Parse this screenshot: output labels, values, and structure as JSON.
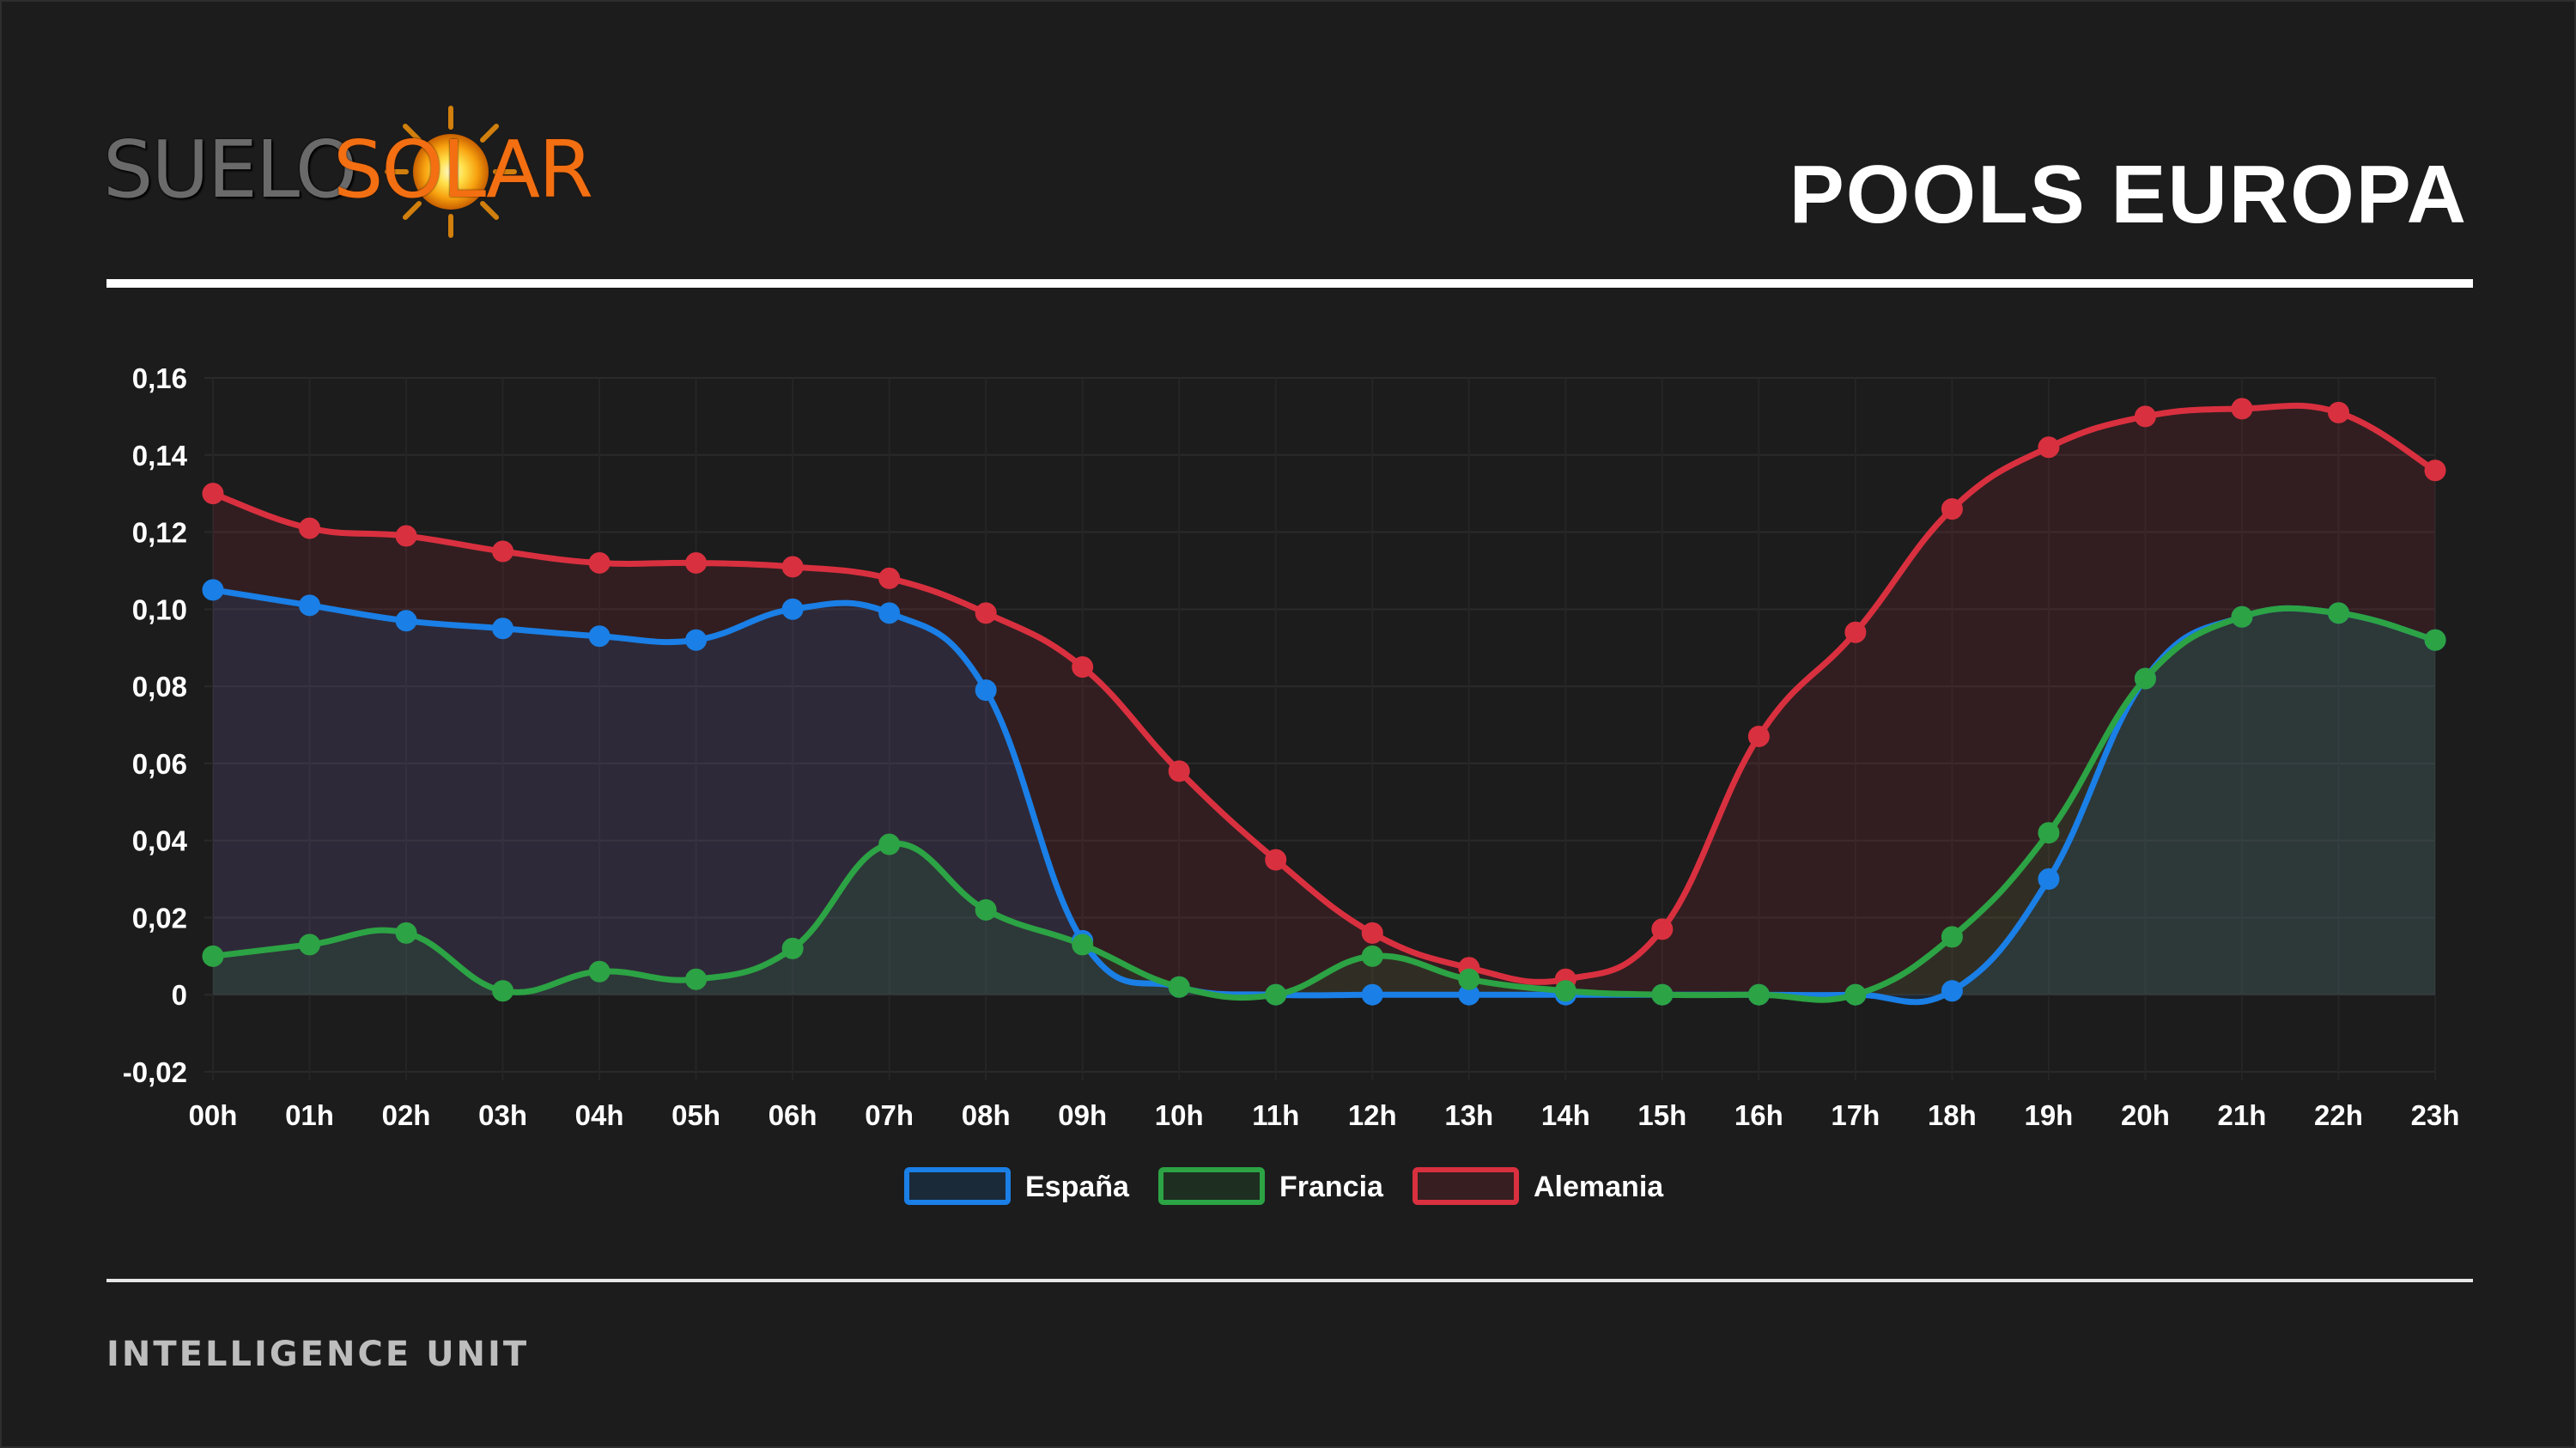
{
  "header": {
    "logo_text_left": "SUELO",
    "logo_text_right": "SOLAR",
    "title": "POOLS EUROPA"
  },
  "footer": {
    "label": "INTELLIGENCE UNIT"
  },
  "colors": {
    "background": "#1c1c1c",
    "espana": "#1a7fe6",
    "francia": "#2ca344",
    "alemania": "#d9303f",
    "logo_orange": "#f36f12",
    "logo_gray": "#6a6a6a"
  },
  "chart_data": {
    "type": "line",
    "title": "",
    "xlabel": "",
    "ylabel": "",
    "categories": [
      "00h",
      "01h",
      "02h",
      "03h",
      "04h",
      "05h",
      "06h",
      "07h",
      "08h",
      "09h",
      "10h",
      "11h",
      "12h",
      "13h",
      "14h",
      "15h",
      "16h",
      "17h",
      "18h",
      "19h",
      "20h",
      "21h",
      "22h",
      "23h"
    ],
    "ylim": [
      -0.02,
      0.16
    ],
    "yticks": [
      -0.02,
      0,
      0.02,
      0.04,
      0.06,
      0.08,
      0.1,
      0.12,
      0.14,
      0.16
    ],
    "ytick_labels": [
      "-0,02",
      "0",
      "0,02",
      "0,04",
      "0,06",
      "0,08",
      "0,10",
      "0,12",
      "0,14",
      "0,16"
    ],
    "grid": true,
    "filled": true,
    "legend_position": "bottom",
    "series": [
      {
        "name": "España",
        "color": "#1a7fe6",
        "values": [
          0.105,
          0.101,
          0.097,
          0.095,
          0.093,
          0.092,
          0.1,
          0.099,
          0.079,
          0.014,
          0.002,
          0.0,
          0.0,
          0.0,
          0.0,
          0.0,
          0.0,
          0.0,
          0.001,
          0.03,
          0.082,
          0.098,
          0.099,
          0.092
        ]
      },
      {
        "name": "Francia",
        "color": "#2ca344",
        "values": [
          0.01,
          0.013,
          0.016,
          0.001,
          0.006,
          0.004,
          0.012,
          0.039,
          0.022,
          0.013,
          0.002,
          0.0,
          0.01,
          0.004,
          0.001,
          0.0,
          0.0,
          0.0,
          0.015,
          0.042,
          0.082,
          0.098,
          0.099,
          0.092
        ]
      },
      {
        "name": "Alemania",
        "color": "#d9303f",
        "values": [
          0.13,
          0.121,
          0.119,
          0.115,
          0.112,
          0.112,
          0.111,
          0.108,
          0.099,
          0.085,
          0.058,
          0.035,
          0.016,
          0.007,
          0.004,
          0.017,
          0.067,
          0.094,
          0.126,
          0.142,
          0.15,
          0.152,
          0.151,
          0.136
        ]
      }
    ]
  }
}
